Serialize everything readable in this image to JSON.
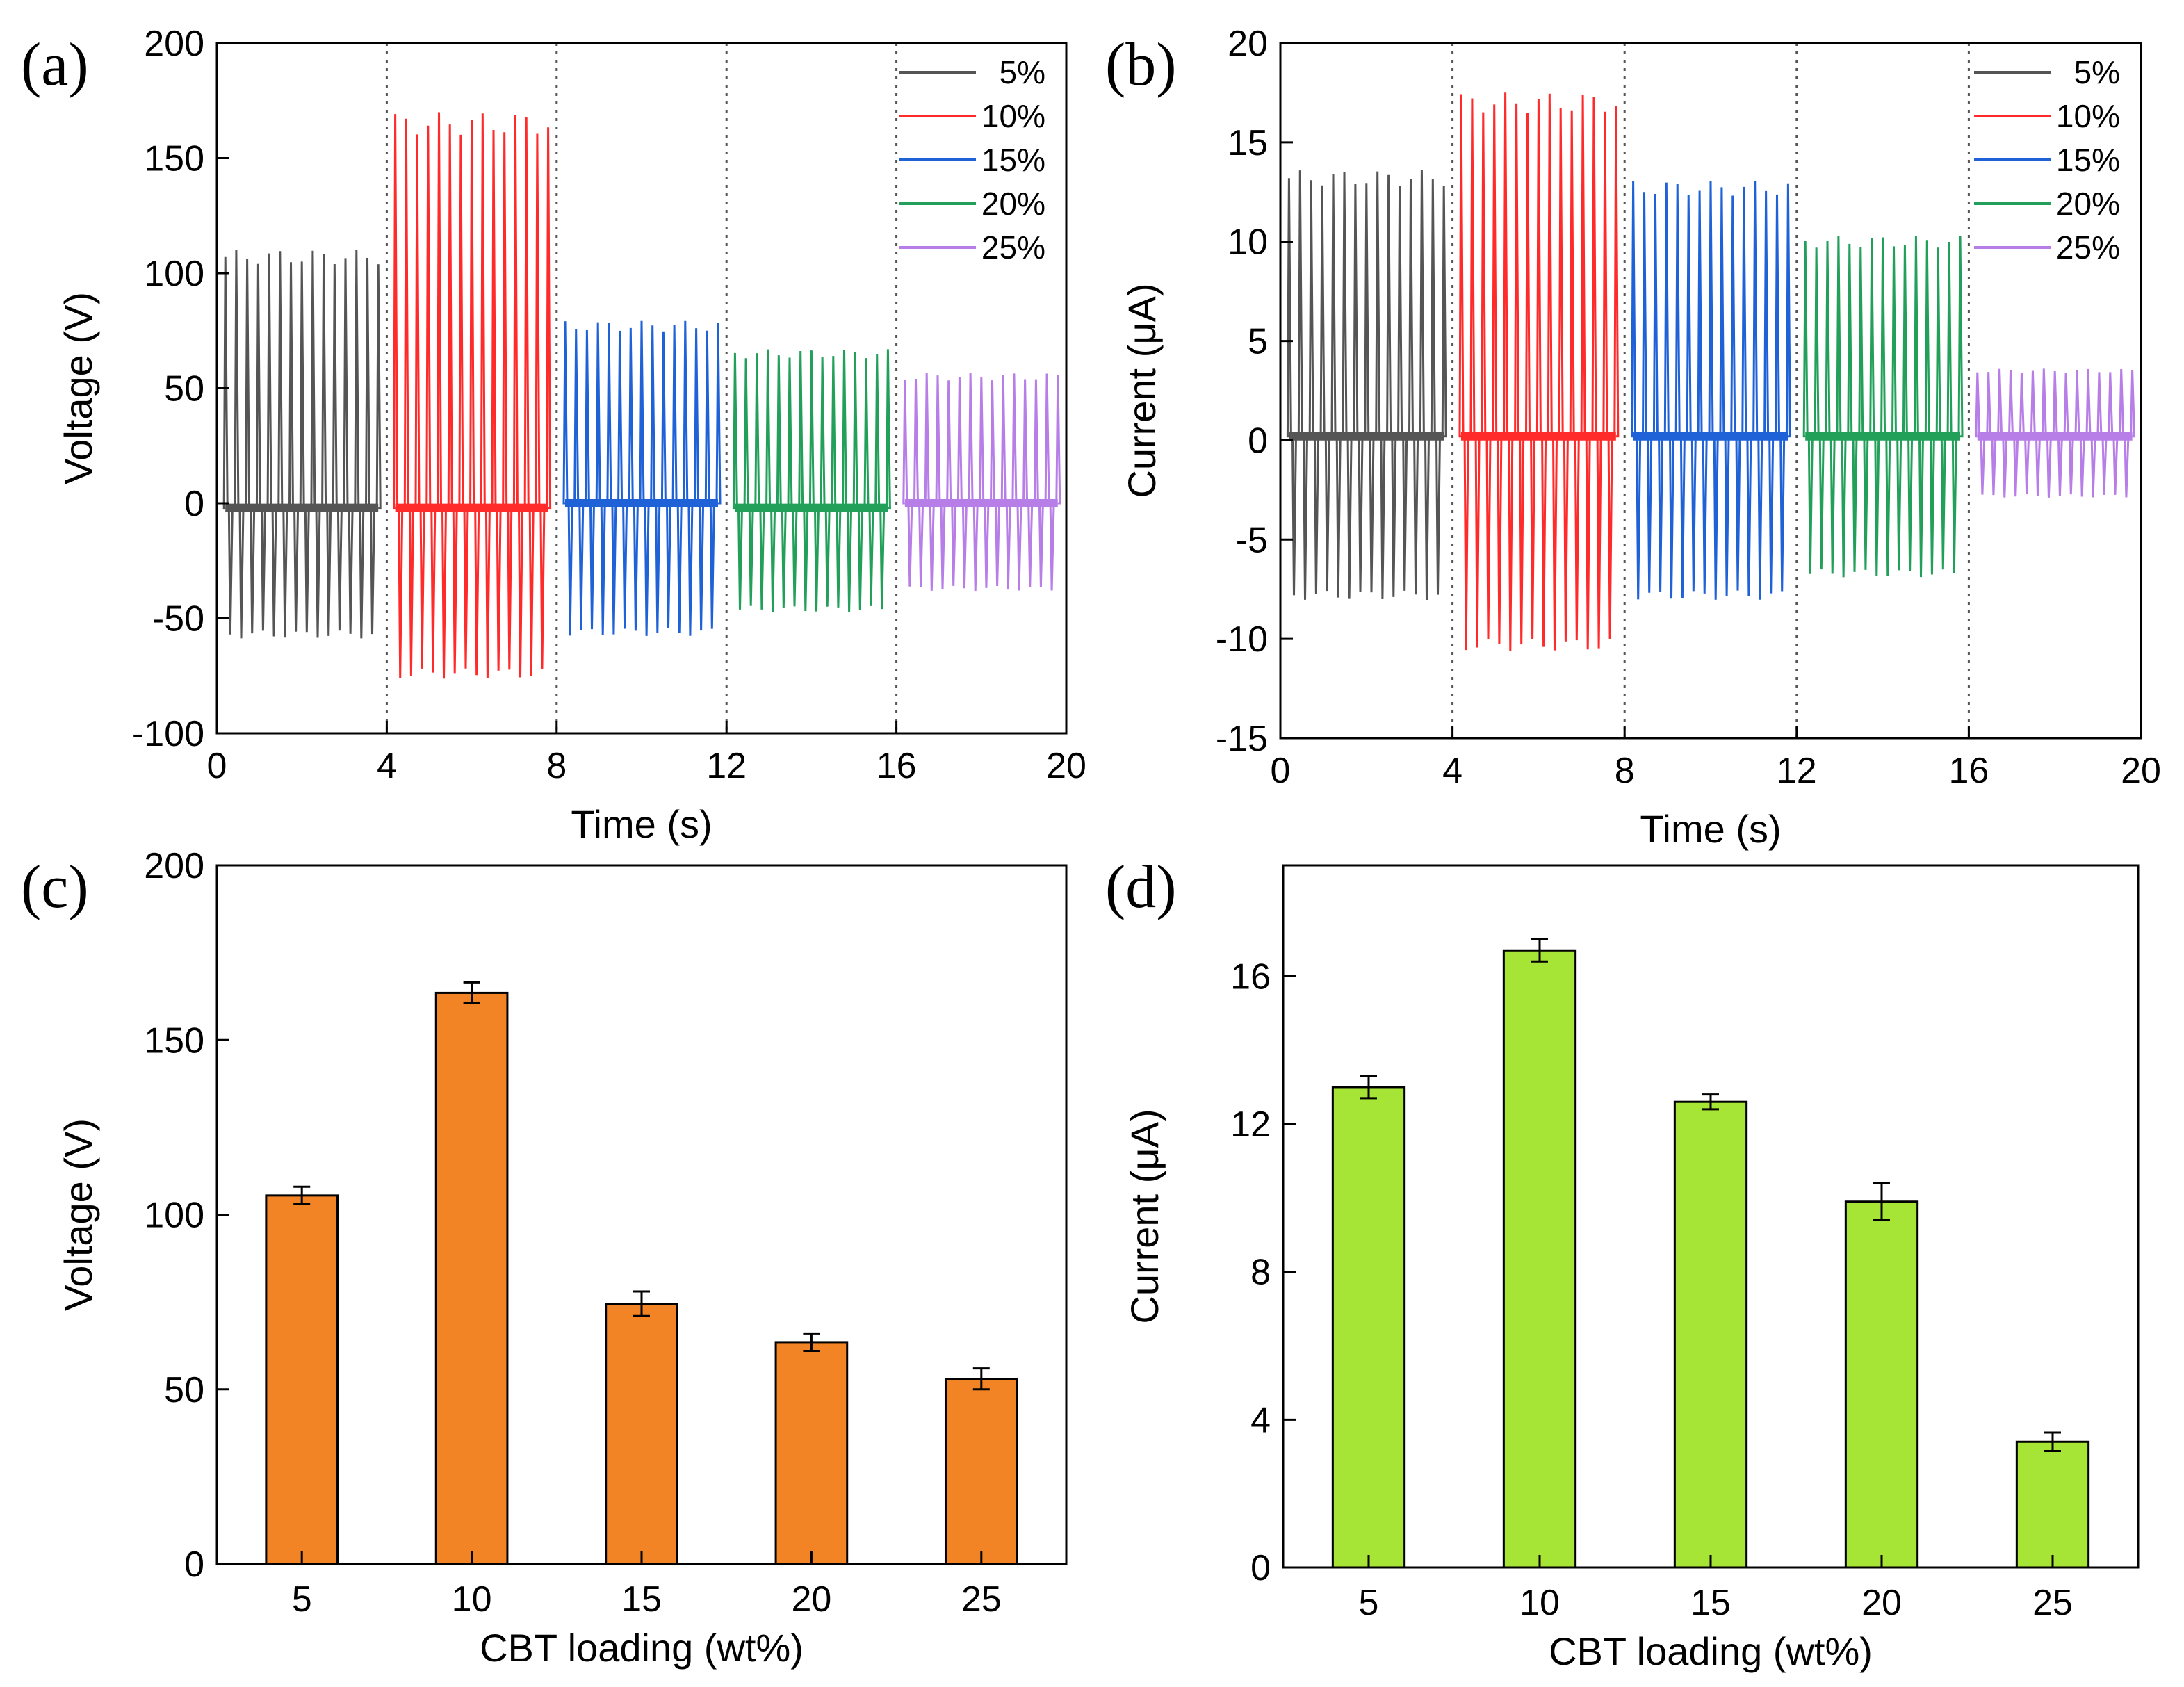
{
  "chart_data": [
    {
      "id": "a",
      "panel_label": "(a)",
      "type": "line",
      "xlabel": "Time (s)",
      "ylabel": "Voltage (V)",
      "xlim": [
        0,
        20
      ],
      "ylim": [
        -100,
        200
      ],
      "x_ticks": [
        0,
        4,
        8,
        12,
        16,
        20
      ],
      "y_ticks": [
        -100,
        -50,
        0,
        50,
        100,
        150,
        200
      ],
      "separators": [
        4,
        8,
        12,
        16
      ],
      "legend": "top-right",
      "series": [
        {
          "name": "5%",
          "color": "#555555",
          "t_start": 0.2,
          "t_end": 3.8,
          "peaks": 15,
          "pos_peak": 107,
          "neg_peak": -57,
          "baseline": -2
        },
        {
          "name": "10%",
          "color": "#ff2a2a",
          "t_start": 4.2,
          "t_end": 7.8,
          "peaks": 15,
          "pos_peak": 165,
          "neg_peak": -74,
          "baseline": -2
        },
        {
          "name": "15%",
          "color": "#1f62d8",
          "t_start": 8.2,
          "t_end": 11.8,
          "peaks": 15,
          "pos_peak": 77,
          "neg_peak": -56,
          "baseline": 0
        },
        {
          "name": "20%",
          "color": "#22a05a",
          "t_start": 12.2,
          "t_end": 15.8,
          "peaks": 15,
          "pos_peak": 65,
          "neg_peak": -46,
          "baseline": -2
        },
        {
          "name": "25%",
          "color": "#b77ee8",
          "t_start": 16.2,
          "t_end": 19.8,
          "peaks": 15,
          "pos_peak": 55,
          "neg_peak": -37,
          "baseline": 0
        }
      ]
    },
    {
      "id": "b",
      "panel_label": "(b)",
      "type": "line",
      "xlabel": "Time (s)",
      "ylabel": "Current (μA)",
      "xlim": [
        0,
        20
      ],
      "ylim": [
        -15,
        20
      ],
      "x_ticks": [
        0,
        4,
        8,
        12,
        16,
        20
      ],
      "y_ticks": [
        -15,
        -10,
        -5,
        0,
        5,
        10,
        15,
        20
      ],
      "separators": [
        4,
        8,
        12,
        16
      ],
      "legend": "top-right",
      "series": [
        {
          "name": "5%",
          "color": "#555555",
          "t_start": 0.2,
          "t_end": 3.8,
          "peaks": 15,
          "pos_peak": 13.2,
          "neg_peak": -7.8,
          "baseline": 0.2
        },
        {
          "name": "10%",
          "color": "#ff2a2a",
          "t_start": 4.2,
          "t_end": 7.8,
          "peaks": 15,
          "pos_peak": 17.0,
          "neg_peak": -10.3,
          "baseline": 0.2
        },
        {
          "name": "15%",
          "color": "#1f62d8",
          "t_start": 8.2,
          "t_end": 11.8,
          "peaks": 15,
          "pos_peak": 12.7,
          "neg_peak": -7.8,
          "baseline": 0.2
        },
        {
          "name": "20%",
          "color": "#22a05a",
          "t_start": 12.2,
          "t_end": 15.8,
          "peaks": 15,
          "pos_peak": 10.0,
          "neg_peak": -6.7,
          "baseline": 0.2
        },
        {
          "name": "25%",
          "color": "#b77ee8",
          "t_start": 16.2,
          "t_end": 19.8,
          "peaks": 15,
          "pos_peak": 3.5,
          "neg_peak": -2.8,
          "baseline": 0.2
        }
      ]
    },
    {
      "id": "c",
      "panel_label": "(c)",
      "type": "bar",
      "xlabel": "CBT loading (wt%)",
      "ylabel": "Voltage (V)",
      "categories": [
        "5",
        "10",
        "15",
        "20",
        "25"
      ],
      "values": [
        105.5,
        163.5,
        74.5,
        63.5,
        53
      ],
      "errors": [
        2.5,
        3,
        3.5,
        2.5,
        3
      ],
      "ylim": [
        0,
        200
      ],
      "y_ticks": [
        0,
        50,
        100,
        150,
        200
      ],
      "color": "#f28426"
    },
    {
      "id": "d",
      "panel_label": "(d)",
      "type": "bar",
      "xlabel": "CBT loading (wt%)",
      "ylabel": "Current (μA)",
      "categories": [
        "5",
        "10",
        "15",
        "20",
        "25"
      ],
      "values": [
        13.0,
        16.7,
        12.6,
        9.9,
        3.4
      ],
      "errors": [
        0.3,
        0.3,
        0.2,
        0.5,
        0.25
      ],
      "ylim": [
        0,
        19
      ],
      "y_ticks": [
        0,
        4,
        8,
        12,
        16
      ],
      "color": "#a6e435"
    }
  ]
}
